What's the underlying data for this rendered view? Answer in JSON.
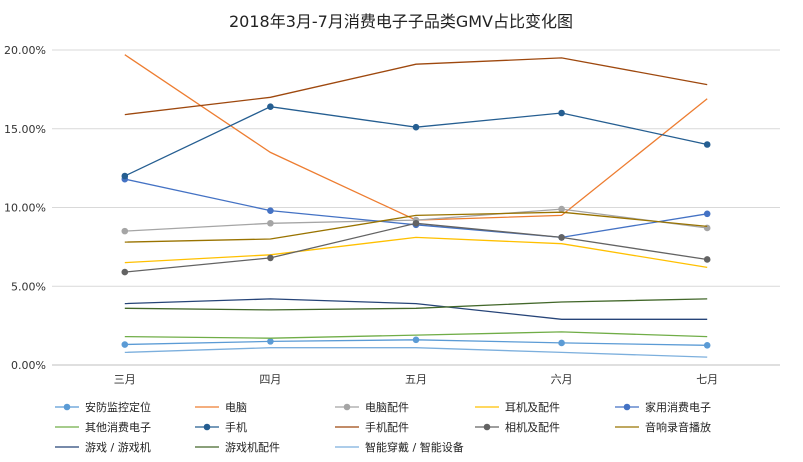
{
  "chart_data": {
    "type": "line",
    "title": "2018年3月-7月消费电子子品类GMV占比变化图",
    "categories": [
      "三月",
      "四月",
      "五月",
      "六月",
      "七月"
    ],
    "ylim": [
      0,
      20
    ],
    "yticks": [
      "0.00%",
      "5.00%",
      "10.00%",
      "15.00%",
      "20.00%"
    ],
    "grid": true,
    "legend_position": "bottom",
    "series": [
      {
        "name": "安防监控定位",
        "color": "#5b9bd5",
        "marker": true,
        "values": [
          1.3,
          1.5,
          1.6,
          1.4,
          1.25
        ]
      },
      {
        "name": "电脑",
        "color": "#ed7d31",
        "marker": false,
        "values": [
          19.7,
          13.5,
          9.2,
          9.5,
          16.9
        ]
      },
      {
        "name": "电脑配件",
        "color": "#a5a5a5",
        "marker": true,
        "values": [
          8.5,
          9.0,
          9.2,
          9.9,
          8.7
        ]
      },
      {
        "name": "耳机及配件",
        "color": "#ffc000",
        "marker": false,
        "values": [
          6.5,
          7.0,
          8.1,
          7.7,
          6.2
        ]
      },
      {
        "name": "家用消费电子",
        "color": "#4472c4",
        "marker": true,
        "values": [
          11.8,
          9.8,
          8.9,
          8.1,
          9.6
        ]
      },
      {
        "name": "其他消费电子",
        "color": "#70ad47",
        "marker": false,
        "values": [
          1.8,
          1.7,
          1.9,
          2.1,
          1.8
        ]
      },
      {
        "name": "手机",
        "color": "#255e91",
        "marker": true,
        "values": [
          12.0,
          16.4,
          15.1,
          16.0,
          14.0
        ]
      },
      {
        "name": "手机配件",
        "color": "#9e480e",
        "marker": false,
        "values": [
          15.9,
          17.0,
          19.1,
          19.5,
          17.8
        ]
      },
      {
        "name": "相机及配件",
        "color": "#636363",
        "marker": true,
        "values": [
          5.9,
          6.8,
          9.0,
          8.1,
          6.7
        ]
      },
      {
        "name": "音响录音播放",
        "color": "#997300",
        "marker": false,
        "values": [
          7.8,
          8.0,
          9.5,
          9.7,
          8.8
        ]
      },
      {
        "name": "游戏 / 游戏机",
        "color": "#264478",
        "marker": false,
        "values": [
          3.9,
          4.2,
          3.9,
          2.9,
          2.9
        ]
      },
      {
        "name": "游戏机配件",
        "color": "#43682b",
        "marker": false,
        "values": [
          3.6,
          3.5,
          3.6,
          4.0,
          4.2
        ]
      },
      {
        "name": "智能穿戴 / 智能设备",
        "color": "#7cafdd",
        "marker": false,
        "values": [
          0.8,
          1.1,
          1.1,
          0.8,
          0.5
        ]
      }
    ]
  }
}
